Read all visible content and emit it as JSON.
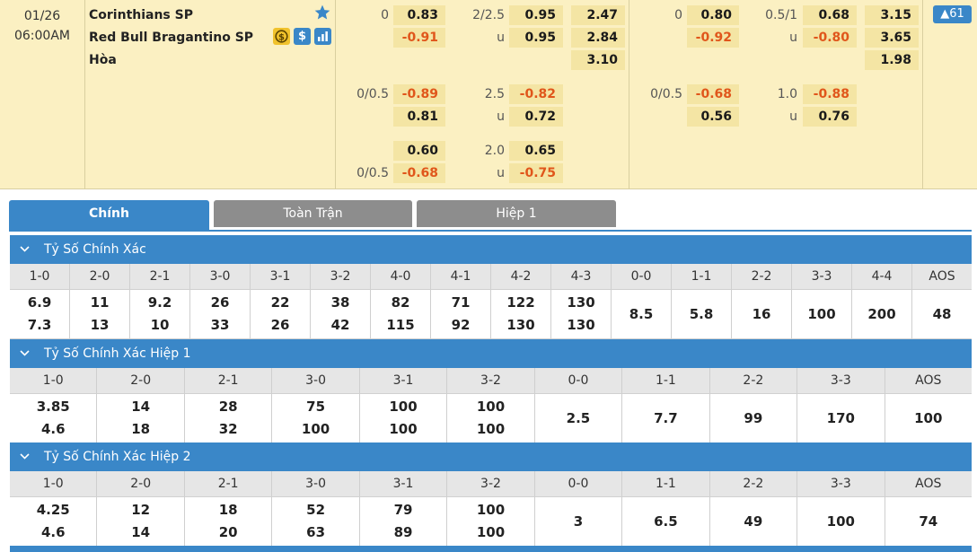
{
  "match": {
    "date": "01/26",
    "time": "06:00AM",
    "home": "Corinthians SP",
    "away": "Red Bull Bragantino SP",
    "draw": "Hòa",
    "badge_dollar": "$",
    "more_count": "▲61",
    "icons": [
      "star-icon",
      "coin-icon",
      "dollar-icon",
      "stats-chart-icon"
    ],
    "rows": [
      {
        "ft_hdp_line": "0",
        "ft_hdp_home": "0.83",
        "ft_hdp_away": "-0.91",
        "ft_ou_line": "2/2.5",
        "ft_ou_over": "0.95",
        "ft_ou_u": "u",
        "ft_ou_under": "0.95",
        "ft_1x2": [
          "2.47",
          "2.84",
          "3.10"
        ],
        "h1_hdp_line": "0",
        "h1_hdp_home": "0.80",
        "h1_hdp_away": "-0.92",
        "h1_ou_line": "0.5/1",
        "h1_ou_over": "0.68",
        "h1_ou_u": "u",
        "h1_ou_under": "-0.80",
        "h1_1x2": [
          "3.15",
          "3.65",
          "1.98"
        ]
      },
      {
        "ft_hdp_line": "0/0.5",
        "ft_hdp_home": "-0.89",
        "ft_hdp_away": "0.81",
        "ft_ou_line": "2.5",
        "ft_ou_over": "-0.82",
        "ft_ou_u": "u",
        "ft_ou_under": "0.72",
        "h1_hdp_line": "0/0.5",
        "h1_hdp_home": "-0.68",
        "h1_hdp_away": "0.56",
        "h1_ou_line": "1.0",
        "h1_ou_over": "-0.88",
        "h1_ou_u": "u",
        "h1_ou_under": "0.76"
      },
      {
        "ft_hdp_line": "0/0.5",
        "ft_hdp_home": "0.60",
        "ft_hdp_away": "-0.68",
        "ft_ou_line": "2.0",
        "ft_ou_over": "0.65",
        "ft_ou_u": "u",
        "ft_ou_under": "-0.75"
      }
    ]
  },
  "tabs": [
    "Chính",
    "Toàn Trận",
    "Hiệp 1"
  ],
  "colors": {
    "accent": "#3a87c8",
    "negative": "#e0561b",
    "match_bg": "#fbf0c2",
    "odds_bg": "#f4e5a4"
  },
  "sections": [
    {
      "title": "Tỷ Số Chính Xác",
      "headers": [
        "1-0",
        "2-0",
        "2-1",
        "3-0",
        "3-1",
        "3-2",
        "4-0",
        "4-1",
        "4-2",
        "4-3",
        "0-0",
        "1-1",
        "2-2",
        "3-3",
        "4-4",
        "AOS"
      ],
      "top": [
        "6.9",
        "11",
        "9.2",
        "26",
        "22",
        "38",
        "82",
        "71",
        "122",
        "130"
      ],
      "bottom": [
        "7.3",
        "13",
        "10",
        "33",
        "26",
        "42",
        "115",
        "92",
        "130",
        "130"
      ],
      "single": [
        "8.5",
        "5.8",
        "16",
        "100",
        "200",
        "48"
      ]
    },
    {
      "title": "Tỷ Số Chính Xác Hiệp 1",
      "headers": [
        "1-0",
        "2-0",
        "2-1",
        "3-0",
        "3-1",
        "3-2",
        "0-0",
        "1-1",
        "2-2",
        "3-3",
        "AOS"
      ],
      "top": [
        "3.85",
        "14",
        "28",
        "75",
        "100",
        "100"
      ],
      "bottom": [
        "4.6",
        "18",
        "32",
        "100",
        "100",
        "100"
      ],
      "single": [
        "2.5",
        "7.7",
        "99",
        "170",
        "100"
      ]
    },
    {
      "title": "Tỷ Số Chính Xác Hiệp 2",
      "headers": [
        "1-0",
        "2-0",
        "2-1",
        "3-0",
        "3-1",
        "3-2",
        "0-0",
        "1-1",
        "2-2",
        "3-3",
        "AOS"
      ],
      "top": [
        "4.25",
        "12",
        "18",
        "52",
        "79",
        "100"
      ],
      "bottom": [
        "4.6",
        "14",
        "20",
        "63",
        "89",
        "100"
      ],
      "single": [
        "3",
        "6.5",
        "49",
        "100",
        "74"
      ]
    }
  ]
}
